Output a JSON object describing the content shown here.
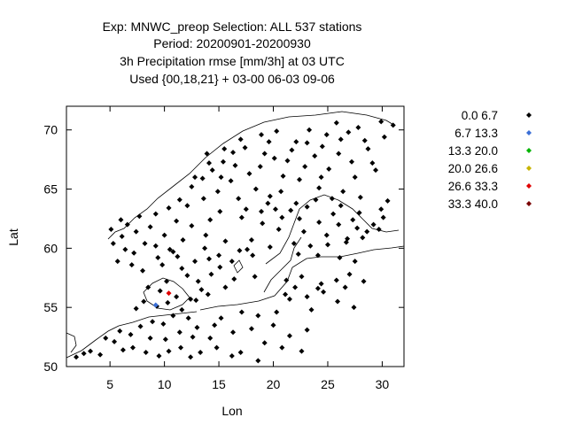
{
  "chart_data": {
    "type": "scatter",
    "title_lines": [
      "Exp: MNWC_preop   Selection: ALL    537 stations",
      "Period: 20200901-20200930",
      "3h Precipitation rmse [mm/3h] at  03 UTC",
      "Used {00,18,21} + 03-00 06-03 09-06"
    ],
    "xlabel": "Lon",
    "ylabel": "Lat",
    "xlim": [
      1,
      32
    ],
    "ylim": [
      50,
      72
    ],
    "xticks": [
      5,
      10,
      15,
      20,
      25,
      30
    ],
    "yticks": [
      50,
      55,
      60,
      65,
      70
    ],
    "grid": false,
    "legend_position": "right",
    "legend": [
      {
        "label": "0.0 6.7",
        "color": "#000000"
      },
      {
        "label": "6.7 13.3",
        "color": "#3b6fd6"
      },
      {
        "label": "13.3 20.0",
        "color": "#00b400"
      },
      {
        "label": "20.0 26.6",
        "color": "#c8b400"
      },
      {
        "label": "26.6 33.3",
        "color": "#e00000"
      },
      {
        "label": "33.3 40.0",
        "color": "#7a0000"
      }
    ],
    "series": [
      {
        "class": "0.0 6.7",
        "points": [
          [
            10.5,
            59.9
          ],
          [
            10.8,
            59.7
          ],
          [
            9.4,
            59.2
          ],
          [
            8.0,
            58.1
          ],
          [
            7.0,
            58.6
          ],
          [
            5.7,
            58.9
          ],
          [
            5.3,
            60.4
          ],
          [
            6.1,
            61.0
          ],
          [
            5.1,
            61.6
          ],
          [
            6.0,
            62.4
          ],
          [
            7.7,
            62.7
          ],
          [
            10.4,
            63.4
          ],
          [
            11.4,
            64.1
          ],
          [
            12.5,
            65.2
          ],
          [
            13.5,
            65.9
          ],
          [
            14.4,
            66.6
          ],
          [
            15.4,
            67.3
          ],
          [
            16.3,
            68.1
          ],
          [
            17.4,
            68.5
          ],
          [
            18.9,
            69.6
          ],
          [
            20.3,
            69.9
          ],
          [
            23.3,
            70.0
          ],
          [
            25.8,
            70.6
          ],
          [
            27.8,
            70.2
          ],
          [
            29.9,
            70.7
          ],
          [
            31.0,
            70.4
          ],
          [
            22.1,
            69.0
          ],
          [
            24.5,
            68.6
          ],
          [
            26.2,
            69.2
          ],
          [
            28.7,
            68.4
          ],
          [
            19.2,
            68.0
          ],
          [
            21.3,
            67.4
          ],
          [
            23.8,
            67.8
          ],
          [
            25.1,
            66.7
          ],
          [
            27.5,
            66.0
          ],
          [
            29.4,
            66.6
          ],
          [
            20.9,
            66.1
          ],
          [
            22.4,
            65.8
          ],
          [
            24.2,
            65.1
          ],
          [
            26.4,
            64.8
          ],
          [
            28.0,
            64.3
          ],
          [
            30.5,
            64.0
          ],
          [
            18.4,
            65.0
          ],
          [
            16.8,
            64.2
          ],
          [
            19.5,
            63.8
          ],
          [
            21.6,
            63.2
          ],
          [
            23.1,
            63.5
          ],
          [
            25.5,
            62.9
          ],
          [
            27.3,
            62.4
          ],
          [
            29.2,
            62.0
          ],
          [
            15.1,
            63.1
          ],
          [
            14.2,
            62.4
          ],
          [
            17.1,
            62.6
          ],
          [
            19.0,
            62.1
          ],
          [
            20.5,
            61.6
          ],
          [
            22.8,
            61.4
          ],
          [
            24.9,
            61.1
          ],
          [
            26.8,
            60.8
          ],
          [
            28.6,
            61.4
          ],
          [
            30.1,
            62.6
          ],
          [
            12.5,
            61.9
          ],
          [
            13.8,
            61.1
          ],
          [
            15.6,
            60.6
          ],
          [
            16.9,
            59.8
          ],
          [
            18.1,
            59.4
          ],
          [
            17.6,
            59.9
          ],
          [
            16.2,
            58.9
          ],
          [
            15.1,
            58.4
          ],
          [
            14.3,
            57.8
          ],
          [
            13.1,
            57.2
          ],
          [
            12.1,
            57.7
          ],
          [
            11.6,
            58.3
          ],
          [
            12.8,
            58.9
          ],
          [
            13.4,
            56.5
          ],
          [
            12.9,
            55.6
          ],
          [
            14.0,
            56.1
          ],
          [
            15.6,
            56.7
          ],
          [
            16.4,
            57.4
          ],
          [
            18.3,
            57.6
          ],
          [
            21.9,
            60.4
          ],
          [
            23.4,
            60.2
          ],
          [
            25.0,
            60.3
          ],
          [
            26.7,
            60.5
          ],
          [
            28.2,
            60.9
          ],
          [
            29.7,
            61.6
          ],
          [
            22.3,
            59.5
          ],
          [
            24.1,
            59.4
          ],
          [
            26.1,
            59.2
          ],
          [
            27.5,
            58.9
          ],
          [
            21.2,
            57.3
          ],
          [
            22.6,
            57.6
          ],
          [
            24.4,
            57.0
          ],
          [
            25.8,
            57.3
          ],
          [
            27.0,
            57.8
          ],
          [
            28.3,
            57.2
          ],
          [
            21.1,
            56.1
          ],
          [
            23.1,
            55.9
          ],
          [
            24.6,
            56.3
          ],
          [
            25.9,
            55.5
          ],
          [
            27.4,
            55.0
          ],
          [
            23.5,
            54.8
          ],
          [
            21.5,
            55.7
          ],
          [
            20.3,
            54.6
          ],
          [
            18.6,
            54.3
          ],
          [
            17.1,
            54.6
          ],
          [
            15.2,
            54.1
          ],
          [
            14.6,
            53.5
          ],
          [
            16.3,
            52.9
          ],
          [
            14.2,
            52.4
          ],
          [
            14.8,
            51.6
          ],
          [
            13.3,
            51.2
          ],
          [
            12.4,
            50.8
          ],
          [
            11.5,
            51.6
          ],
          [
            10.4,
            51.3
          ],
          [
            9.5,
            50.9
          ],
          [
            8.3,
            51.2
          ],
          [
            7.1,
            51.6
          ],
          [
            6.2,
            51.4
          ],
          [
            5.4,
            52.1
          ],
          [
            4.6,
            52.4
          ],
          [
            5.9,
            53.0
          ],
          [
            6.9,
            52.7
          ],
          [
            7.8,
            53.4
          ],
          [
            8.9,
            53.8
          ],
          [
            9.9,
            53.6
          ],
          [
            10.8,
            54.3
          ],
          [
            11.6,
            54.8
          ],
          [
            12.2,
            54.1
          ],
          [
            13.0,
            53.3
          ],
          [
            12.6,
            52.5
          ],
          [
            11.4,
            52.9
          ],
          [
            10.1,
            52.3
          ],
          [
            8.7,
            52.4
          ],
          [
            9.3,
            55.1
          ],
          [
            10.3,
            55.4
          ],
          [
            11.1,
            55.9
          ],
          [
            12.4,
            55.7
          ],
          [
            9.6,
            56.4
          ],
          [
            10.2,
            57.2
          ],
          [
            8.5,
            56.7
          ],
          [
            8.1,
            55.5
          ],
          [
            7.4,
            54.9
          ],
          [
            3.2,
            51.3
          ],
          [
            4.1,
            51.0
          ],
          [
            2.6,
            51.1
          ],
          [
            1.9,
            50.8
          ],
          [
            13.7,
            60.0
          ],
          [
            11.7,
            60.7
          ],
          [
            10.0,
            61.1
          ],
          [
            8.7,
            61.8
          ],
          [
            11.1,
            62.3
          ],
          [
            9.2,
            62.9
          ],
          [
            12.1,
            63.6
          ],
          [
            13.6,
            64.2
          ],
          [
            14.9,
            64.8
          ],
          [
            16.1,
            65.7
          ],
          [
            17.8,
            66.3
          ],
          [
            18.8,
            66.9
          ],
          [
            20.1,
            67.6
          ],
          [
            21.7,
            68.3
          ],
          [
            23.1,
            68.9
          ],
          [
            24.9,
            69.6
          ],
          [
            26.9,
            69.8
          ],
          [
            28.4,
            69.1
          ],
          [
            30.2,
            69.4
          ],
          [
            29.1,
            67.2
          ],
          [
            27.2,
            67.3
          ],
          [
            26.0,
            68.0
          ],
          [
            22.9,
            66.9
          ],
          [
            24.4,
            66.0
          ],
          [
            20.7,
            64.8
          ],
          [
            19.7,
            64.4
          ],
          [
            17.5,
            63.3
          ],
          [
            18.9,
            63.1
          ],
          [
            20.2,
            63.3
          ],
          [
            26.2,
            63.6
          ],
          [
            27.9,
            63.0
          ],
          [
            29.9,
            63.3
          ],
          [
            25.4,
            64.2
          ],
          [
            23.9,
            64.1
          ],
          [
            22.1,
            63.8
          ],
          [
            12.8,
            66.0
          ],
          [
            14.1,
            67.2
          ],
          [
            15.5,
            68.4
          ],
          [
            13.9,
            68.0
          ],
          [
            17.0,
            69.2
          ],
          [
            19.6,
            69.0
          ],
          [
            16.5,
            67.0
          ],
          [
            15.2,
            66.0
          ],
          [
            20.8,
            62.6
          ],
          [
            22.4,
            62.5
          ],
          [
            24.2,
            62.2
          ],
          [
            26.0,
            62.0
          ],
          [
            27.7,
            61.7
          ],
          [
            18.0,
            60.7
          ],
          [
            19.7,
            60.1
          ],
          [
            15.0,
            59.4
          ],
          [
            14.1,
            59.1
          ],
          [
            11.2,
            59.3
          ],
          [
            9.8,
            58.6
          ],
          [
            7.2,
            59.6
          ],
          [
            6.4,
            59.9
          ],
          [
            8.2,
            60.4
          ],
          [
            9.2,
            60.2
          ],
          [
            7.4,
            61.4
          ],
          [
            6.6,
            62.0
          ],
          [
            24.1,
            56.6
          ],
          [
            22.0,
            56.7
          ],
          [
            26.6,
            56.7
          ],
          [
            20.0,
            53.5
          ],
          [
            18.0,
            53.2
          ],
          [
            21.5,
            52.6
          ],
          [
            23.1,
            53.1
          ],
          [
            19.2,
            52.0
          ],
          [
            17.0,
            51.2
          ],
          [
            20.8,
            51.6
          ],
          [
            22.6,
            51.3
          ],
          [
            18.6,
            50.5
          ],
          [
            16.2,
            50.9
          ]
        ]
      },
      {
        "class": "6.7 13.3",
        "points": [
          [
            9.2,
            55.2
          ]
        ]
      },
      {
        "class": "26.6 33.3",
        "points": [
          [
            10.4,
            56.2
          ]
        ]
      }
    ]
  }
}
